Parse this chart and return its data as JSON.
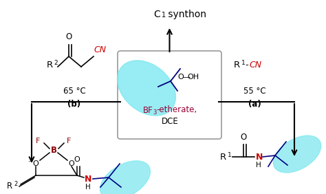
{
  "bg_color": "#ffffff",
  "colors": {
    "red": "#cc0000",
    "dark_red": "#8b0000",
    "magenta": "#990033",
    "navy": "#000080",
    "black": "#000000",
    "cyan_fill": "#7fe8f0",
    "box_border": "#999999"
  },
  "title_text": "C",
  "title_sub": "1",
  "title_rest": " synthon",
  "box_bf3_line1_a": "BF",
  "box_bf3_line1_sub": "3",
  "box_bf3_line1_b": "-etherate,",
  "box_bf3_line2": "DCE",
  "left_temp": "65 °C",
  "left_label": "(b)",
  "right_temp": "55 °C",
  "right_label": "(a)"
}
